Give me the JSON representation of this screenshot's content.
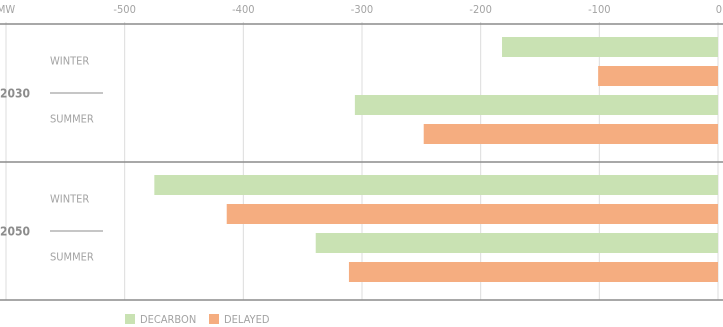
{
  "chart_data": {
    "type": "bar",
    "orientation": "horizontal",
    "groups": [
      "2030",
      "2050"
    ],
    "categories": [
      "WINTER",
      "SUMMER",
      "WINTER",
      "SUMMER"
    ],
    "series": [
      {
        "name": "DECARBON",
        "color": "#c9e2b3",
        "values": [
          -182,
          -306,
          -475,
          -339
        ]
      },
      {
        "name": "DELAYED",
        "color": "#f5ad80",
        "values": [
          -101,
          -248,
          -414,
          -311
        ]
      }
    ],
    "xlim": [
      -600,
      0
    ],
    "xticks": [
      {
        "value": -600,
        "label": "MW"
      },
      -500,
      -400,
      -300,
      -200,
      -100,
      0
    ],
    "grid": true
  }
}
